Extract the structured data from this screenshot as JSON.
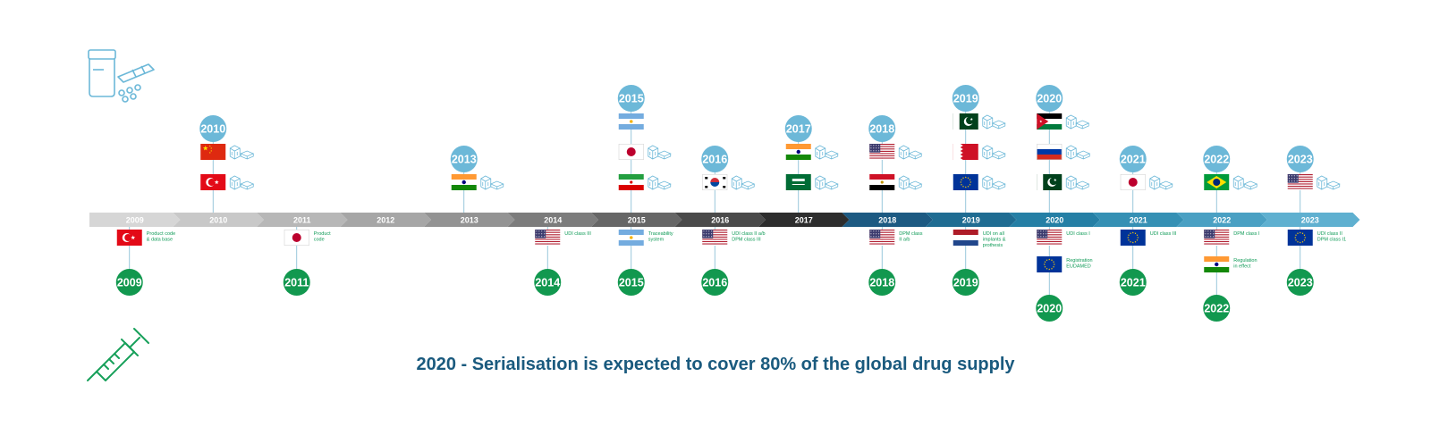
{
  "headline": "2020 - Serialisation is expected to cover 80% of the global drug supply",
  "colors": {
    "bubble_blue": "#6cb8d8",
    "bubble_green": "#12984f",
    "note_green": "#0e9a56",
    "headline": "#1a5a7e",
    "icon_blue": "#6cb8d8",
    "icon_green": "#17a05a"
  },
  "icons": {
    "top_left": "medicine-bottle-pills-icon",
    "bottom_left": "syringe-icon",
    "mini": "box-stack-icon"
  },
  "timeline": [
    {
      "label": "2009",
      "color": "#d6d6d6"
    },
    {
      "label": "2010",
      "color": "#c8c8c8"
    },
    {
      "label": "2011",
      "color": "#b7b7b7"
    },
    {
      "label": "2012",
      "color": "#a6a6a6"
    },
    {
      "label": "2013",
      "color": "#939393"
    },
    {
      "label": "2014",
      "color": "#7c7c7c"
    },
    {
      "label": "2015",
      "color": "#666666"
    },
    {
      "label": "2016",
      "color": "#4a4a4a"
    },
    {
      "label": "2017",
      "color": "#2d2d2d"
    },
    {
      "label": "2018",
      "color": "#1d5a82"
    },
    {
      "label": "2019",
      "color": "#1f6c92"
    },
    {
      "label": "2020",
      "color": "#257fa5"
    },
    {
      "label": "2021",
      "color": "#3590b4"
    },
    {
      "label": "2022",
      "color": "#4aa0c3"
    },
    {
      "label": "2023",
      "color": "#5fb0d0"
    }
  ],
  "upper_events": [
    {
      "year": "2010",
      "flags": [
        {
          "country": "turkey",
          "icons": 2
        },
        {
          "country": "china",
          "icons": 2
        }
      ]
    },
    {
      "year": "2013",
      "flags": [
        {
          "country": "india",
          "icons": 1
        }
      ]
    },
    {
      "year": "2015",
      "flags": [
        {
          "country": "iran",
          "icons": 1
        },
        {
          "country": "japan",
          "icons": 1
        },
        {
          "country": "argentina",
          "icons": 0
        }
      ]
    },
    {
      "year": "2016",
      "flags": [
        {
          "country": "south-korea",
          "icons": 1
        }
      ]
    },
    {
      "year": "2017",
      "flags": [
        {
          "country": "saudi-arabia",
          "icons": 1
        },
        {
          "country": "india",
          "icons": 1
        }
      ]
    },
    {
      "year": "2018",
      "flags": [
        {
          "country": "egypt",
          "icons": 1
        },
        {
          "country": "usa",
          "icons": 1
        }
      ]
    },
    {
      "year": "2019",
      "flags": [
        {
          "country": "eu",
          "icons": 1
        },
        {
          "country": "bahrain",
          "icons": 1
        },
        {
          "country": "pakistan",
          "icons": 1
        }
      ]
    },
    {
      "year": "2020",
      "flags": [
        {
          "country": "pakistan",
          "icons": 1
        },
        {
          "country": "russia",
          "icons": 2
        },
        {
          "country": "jordan",
          "icons": 1
        }
      ]
    },
    {
      "year": "2021",
      "flags": [
        {
          "country": "japan",
          "icons": 1
        }
      ]
    },
    {
      "year": "2022",
      "flags": [
        {
          "country": "brazil",
          "icons": 2
        }
      ]
    },
    {
      "year": "2023",
      "flags": [
        {
          "country": "usa",
          "icons": 1
        }
      ]
    }
  ],
  "lower_events": [
    {
      "year": "2009",
      "items": [
        {
          "country": "turkey",
          "text": [
            "Product code",
            "& data base"
          ]
        }
      ]
    },
    {
      "year": "2011",
      "items": [
        {
          "country": "japan",
          "text": [
            "Product",
            "code"
          ]
        }
      ]
    },
    {
      "year": "2014",
      "items": [
        {
          "country": "usa",
          "text": [
            "UDI class III"
          ]
        }
      ]
    },
    {
      "year": "2015",
      "items": [
        {
          "country": "argentina",
          "text": [
            "Traceability",
            "system"
          ]
        }
      ]
    },
    {
      "year": "2016",
      "items": [
        {
          "country": "usa",
          "text": [
            "UDI class II a/b",
            "DPM class III"
          ]
        }
      ]
    },
    {
      "year": "2018",
      "items": [
        {
          "country": "usa",
          "text": [
            "DPM class",
            "II a/b"
          ]
        }
      ]
    },
    {
      "year": "2019",
      "items": [
        {
          "country": "netherlands",
          "text": [
            "UDI on all",
            "implants &",
            "prothesis"
          ]
        }
      ]
    },
    {
      "year": "2020",
      "items": [
        {
          "country": "usa",
          "text": [
            "UDI class I"
          ]
        },
        {
          "country": "eu",
          "text": [
            "Registration",
            "EUDAMED"
          ]
        }
      ]
    },
    {
      "year": "2021",
      "items": [
        {
          "country": "eu",
          "text": [
            "UDI class III"
          ]
        }
      ]
    },
    {
      "year": "2022",
      "items": [
        {
          "country": "usa",
          "text": [
            "DPM class I"
          ]
        },
        {
          "country": "india",
          "text": [
            "Regulation",
            "in effect"
          ]
        }
      ]
    },
    {
      "year": "2023",
      "items": [
        {
          "country": "eu",
          "text": [
            "UDI class II",
            "DPM class I1"
          ]
        }
      ]
    }
  ]
}
